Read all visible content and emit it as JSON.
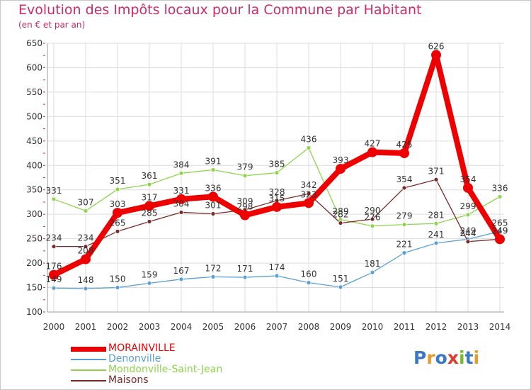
{
  "title": "Evolution des Impôts locaux pour la Commune par Habitant",
  "subtitle": "(en € et par an)",
  "logo": {
    "text": "Proxiti",
    "colors": [
      "#3a78c8",
      "#e89a2a",
      "#3a78c8",
      "#e03a2a",
      "#7ab830",
      "#3a78c8",
      "#e89a2a"
    ]
  },
  "chart_data": {
    "type": "line",
    "x": [
      "2000",
      "2001",
      "2002",
      "2003",
      "2004",
      "2005",
      "2006",
      "2007",
      "2008",
      "2009",
      "2010",
      "2011",
      "2012",
      "2013",
      "2014"
    ],
    "ylim": [
      100,
      650
    ],
    "yticks": [
      100,
      150,
      200,
      250,
      300,
      350,
      400,
      450,
      500,
      550,
      600,
      650
    ],
    "grid": true,
    "legend_placement": "bottom-left",
    "series": [
      {
        "name": "Denonville",
        "color": "#5a9fd4",
        "width": 1.3,
        "dot": 3,
        "values": [
          149,
          148,
          150,
          159,
          167,
          172,
          171,
          174,
          160,
          151,
          181,
          221,
          241,
          249,
          265
        ]
      },
      {
        "name": "Mondonville-Saint-Jean",
        "color": "#8ed44c",
        "width": 1.3,
        "dot": 3,
        "values": [
          331,
          307,
          351,
          361,
          384,
          391,
          379,
          385,
          436,
          289,
          276,
          279,
          281,
          299,
          336
        ]
      },
      {
        "name": "Maisons",
        "color": "#7a2a2a",
        "width": 1.3,
        "dot": 3,
        "values": [
          234,
          234,
          265,
          285,
          304,
          301,
          309,
          328,
          342,
          282,
          290,
          354,
          371,
          244,
          249
        ]
      },
      {
        "name": "MORAINVILLE",
        "color": "#ee0000",
        "width": 8,
        "dot": 7,
        "values": [
          176,
          208,
          303,
          317,
          331,
          336,
          298,
          315,
          323,
          393,
          427,
          425,
          626,
          354,
          249
        ]
      }
    ],
    "labels": [
      {
        "series": "Denonville",
        "values": [
          "149",
          "148",
          "150",
          "159",
          "167",
          "172",
          "171",
          "174",
          "160",
          "151",
          "181",
          "221",
          "241",
          "249",
          "265"
        ]
      },
      {
        "series": "Mondonville-Saint-Jean",
        "values": [
          "331",
          "307",
          "351",
          "361",
          "384",
          "391",
          "379",
          "385",
          "436",
          "289",
          "276",
          "279",
          "281",
          "299",
          "336"
        ]
      },
      {
        "series": "Maisons",
        "values": [
          "234",
          "234",
          "265",
          "285",
          "304",
          "301",
          "309",
          "328",
          "342",
          "282",
          "290",
          "354",
          "371",
          "244",
          "249"
        ]
      },
      {
        "series": "MORAINVILLE",
        "values": [
          "176",
          "208",
          "303",
          "317",
          "331",
          "336",
          "298",
          "315",
          "323",
          "393",
          "427",
          "425",
          "626",
          "354",
          "249"
        ]
      }
    ]
  },
  "legend": [
    {
      "name": "MORAINVILLE",
      "color": "#ee0000",
      "thickness": 7
    },
    {
      "name": "Denonville",
      "color": "#5a9fd4",
      "thickness": 2
    },
    {
      "name": "Mondonville-Saint-Jean",
      "color": "#8ed44c",
      "thickness": 2
    },
    {
      "name": "Maisons",
      "color": "#7a2a2a",
      "thickness": 2
    }
  ]
}
